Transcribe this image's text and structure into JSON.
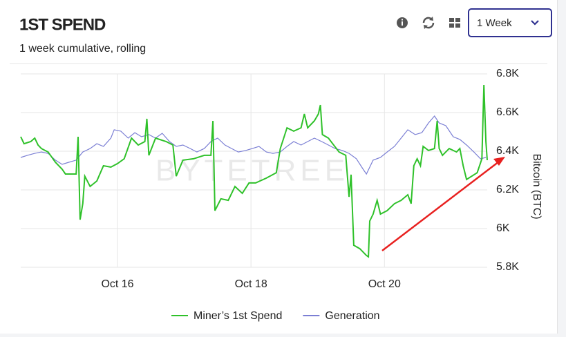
{
  "controls": {
    "range": "1 Week"
  },
  "chart_data": {
    "type": "line",
    "title": "1ST SPEND",
    "subtitle": "1 week cumulative, rolling",
    "watermark": "BYTETREE",
    "y_label": "Bitcoin (BTC)",
    "xlim": [
      14.55,
      21.54
    ],
    "xticks": [
      {
        "value": 16,
        "label": "Oct 16"
      },
      {
        "value": 18,
        "label": "Oct 18"
      },
      {
        "value": 20,
        "label": "Oct 20"
      }
    ],
    "ylim": [
      5800,
      6800
    ],
    "yticks": [
      {
        "value": 5800,
        "label": "5.8K"
      },
      {
        "value": 6000,
        "label": "6K"
      },
      {
        "value": 6200,
        "label": "6.2K"
      },
      {
        "value": 6400,
        "label": "6.4K"
      },
      {
        "value": 6600,
        "label": "6.6K"
      },
      {
        "value": 6800,
        "label": "6.8K"
      }
    ],
    "grid": true,
    "y_axis_side": "right",
    "series": [
      {
        "name": "Miner’s 1st Spend",
        "color": "#2fc12a",
        "x": [
          14.55,
          14.6,
          14.7,
          14.76,
          14.81,
          14.86,
          14.96,
          15.07,
          15.17,
          15.22,
          15.38,
          15.41,
          15.44,
          15.48,
          15.51,
          15.59,
          15.69,
          15.79,
          15.9,
          16.0,
          16.1,
          16.21,
          16.31,
          16.41,
          16.44,
          16.47,
          16.57,
          16.73,
          16.83,
          16.88,
          16.98,
          17.14,
          17.3,
          17.4,
          17.43,
          17.46,
          17.55,
          17.66,
          17.76,
          17.87,
          17.97,
          18.07,
          18.23,
          18.38,
          18.44,
          18.49,
          18.54,
          18.64,
          18.75,
          18.8,
          18.85,
          18.95,
          19.01,
          19.04,
          19.07,
          19.16,
          19.32,
          19.42,
          19.47,
          19.5,
          19.54,
          19.63,
          19.73,
          19.76,
          19.78,
          19.83,
          19.89,
          19.94,
          20.04,
          20.15,
          20.25,
          20.35,
          20.4,
          20.44,
          20.49,
          20.54,
          20.58,
          20.66,
          20.75,
          20.79,
          20.82,
          20.87,
          20.97,
          21.08,
          21.13,
          21.18,
          21.23,
          21.39,
          21.46,
          21.49,
          21.52,
          21.54
        ],
        "values": [
          6475,
          6439,
          6450,
          6468,
          6432,
          6414,
          6396,
          6343,
          6307,
          6282,
          6282,
          6475,
          6046,
          6129,
          6271,
          6218,
          6246,
          6325,
          6318,
          6336,
          6361,
          6468,
          6432,
          6450,
          6568,
          6379,
          6468,
          6450,
          6432,
          6271,
          6354,
          6361,
          6379,
          6379,
          6557,
          6093,
          6154,
          6146,
          6218,
          6182,
          6236,
          6236,
          6261,
          6289,
          6414,
          6468,
          6521,
          6504,
          6521,
          6593,
          6521,
          6557,
          6593,
          6639,
          6486,
          6468,
          6396,
          6379,
          6164,
          6279,
          5914,
          5896,
          5861,
          5854,
          6039,
          6075,
          6146,
          6075,
          6093,
          6129,
          6146,
          6175,
          6129,
          6325,
          6361,
          6325,
          6425,
          6404,
          6414,
          6557,
          6414,
          6379,
          6414,
          6396,
          6414,
          6325,
          6254,
          6289,
          6361,
          6743,
          6450,
          6354
        ]
      },
      {
        "name": "Generation",
        "color": "#7b7fd4",
        "x": [
          14.55,
          14.65,
          14.76,
          14.86,
          14.96,
          15.07,
          15.17,
          15.27,
          15.38,
          15.48,
          15.59,
          15.69,
          15.79,
          15.9,
          15.95,
          16.05,
          16.16,
          16.26,
          16.36,
          16.47,
          16.57,
          16.67,
          16.78,
          16.88,
          16.98,
          17.09,
          17.19,
          17.3,
          17.4,
          17.5,
          17.61,
          17.71,
          17.81,
          17.92,
          18.02,
          18.12,
          18.23,
          18.33,
          18.44,
          18.54,
          18.64,
          18.75,
          18.85,
          18.95,
          19.06,
          19.16,
          19.26,
          19.37,
          19.47,
          19.58,
          19.68,
          19.73,
          19.83,
          19.94,
          20.04,
          20.15,
          20.25,
          20.35,
          20.46,
          20.56,
          20.66,
          20.75,
          20.82,
          20.92,
          21.03,
          21.13,
          21.23,
          21.34,
          21.44,
          21.52
        ],
        "values": [
          6368,
          6379,
          6389,
          6396,
          6389,
          6354,
          6332,
          6343,
          6354,
          6396,
          6414,
          6439,
          6425,
          6468,
          6511,
          6504,
          6468,
          6496,
          6475,
          6486,
          6468,
          6493,
          6450,
          6425,
          6432,
          6414,
          6396,
          6414,
          6450,
          6468,
          6432,
          6414,
          6396,
          6404,
          6414,
          6425,
          6396,
          6389,
          6396,
          6425,
          6450,
          6432,
          6450,
          6468,
          6450,
          6432,
          6414,
          6404,
          6389,
          6361,
          6307,
          6282,
          6354,
          6368,
          6396,
          6425,
          6468,
          6511,
          6486,
          6496,
          6546,
          6582,
          6546,
          6532,
          6475,
          6461,
          6432,
          6396,
          6361,
          6368
        ]
      }
    ]
  }
}
